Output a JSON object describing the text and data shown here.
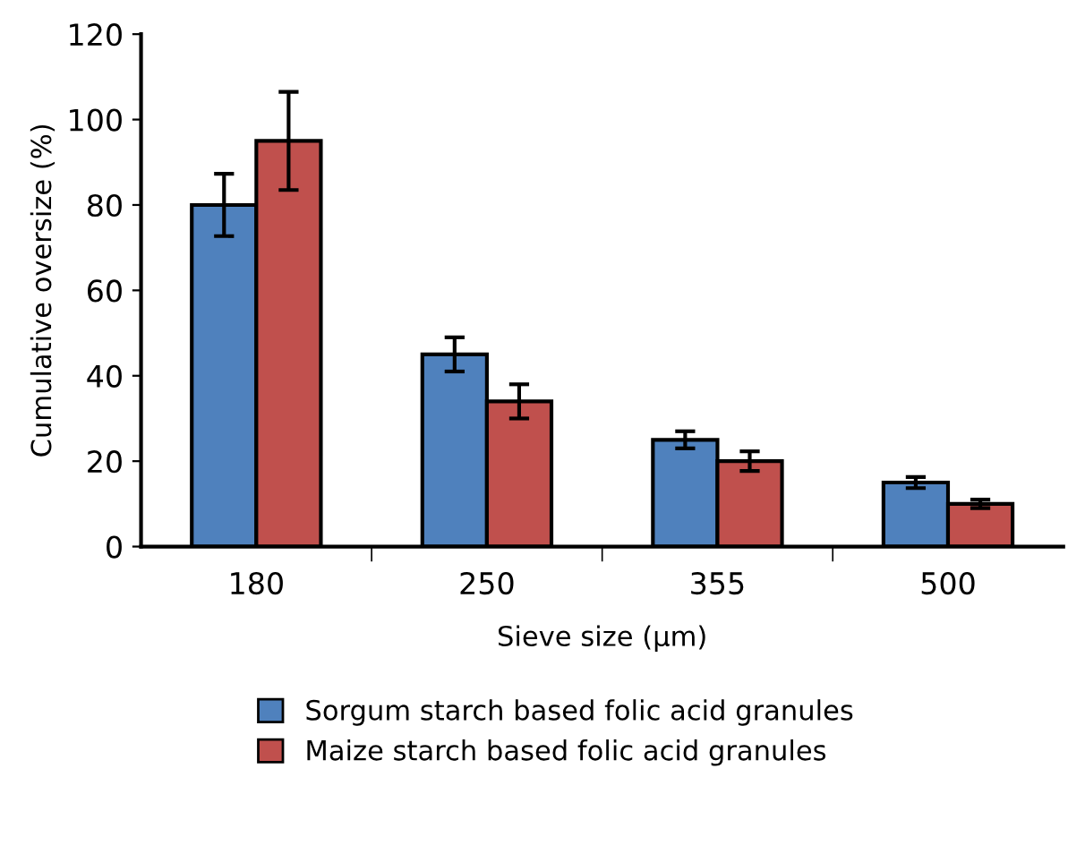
{
  "chart_data": {
    "type": "bar",
    "xlabel": "Sieve size (µm)",
    "ylabel": "Cumulative oversize (%)",
    "categories": [
      "180",
      "250",
      "355",
      "500"
    ],
    "series": [
      {
        "name": "Sorgum starch based folic acid granules",
        "color": "#4f81bd",
        "values": [
          80,
          45,
          25,
          15
        ],
        "errors": [
          7.3,
          4,
          2,
          1.3
        ]
      },
      {
        "name": "Maize starch based folic acid granules",
        "color": "#c0504d",
        "values": [
          95,
          34,
          20,
          10
        ],
        "errors": [
          11.5,
          4,
          2.3,
          1
        ]
      }
    ],
    "ylim": [
      0,
      120
    ],
    "yticks": [
      0,
      20,
      40,
      60,
      80,
      100,
      120
    ],
    "grid": false,
    "legend": "bottom"
  }
}
